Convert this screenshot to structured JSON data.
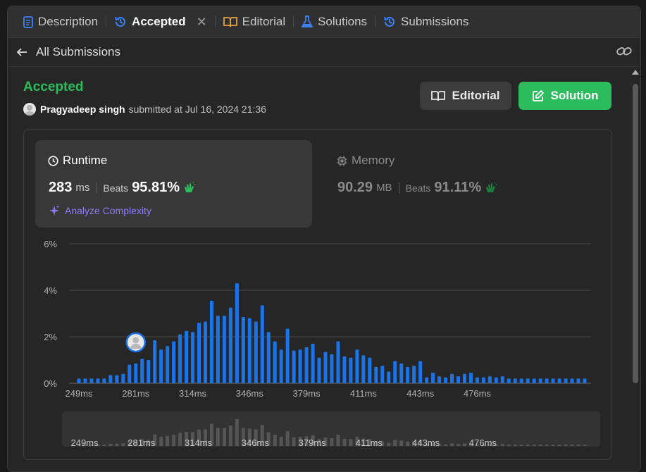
{
  "tabs": [
    {
      "label": "Description",
      "icon": "document-icon",
      "active": false
    },
    {
      "label": "Accepted",
      "icon": "history-icon",
      "active": true
    },
    {
      "label": "Editorial",
      "icon": "book-icon",
      "active": false
    },
    {
      "label": "Solutions",
      "icon": "flask-icon",
      "active": false
    },
    {
      "label": "Submissions",
      "icon": "history-icon",
      "active": false
    }
  ],
  "subheader": {
    "back_label": "All Submissions"
  },
  "submission": {
    "status": "Accepted",
    "author": "Pragyadeep singh",
    "submitted_text": "submitted at Jul 16, 2024 21:36"
  },
  "buttons": {
    "editorial": "Editorial",
    "solution": "Solution"
  },
  "runtime": {
    "label": "Runtime",
    "value": "283",
    "unit": "ms",
    "beats_label": "Beats",
    "beats_value": "95.81%",
    "analyze_label": "Analyze Complexity"
  },
  "memory": {
    "label": "Memory",
    "value": "90.29",
    "unit": "MB",
    "beats_label": "Beats",
    "beats_value": "91.11%"
  },
  "colors": {
    "accent_green": "#2cbb5d",
    "bar_blue": "#1a73e8",
    "analyze_purple": "#8d7bff",
    "mini_bar": "#555555"
  },
  "chart_data": {
    "type": "bar",
    "ylim": [
      0,
      6
    ],
    "yticks": [
      "6%",
      "4%",
      "2%",
      "0%"
    ],
    "xticks": [
      "249ms",
      "281ms",
      "314ms",
      "346ms",
      "379ms",
      "411ms",
      "443ms",
      "476ms"
    ],
    "xtick_positions": [
      0,
      9,
      18,
      27,
      36,
      45,
      54,
      63
    ],
    "highlight_index": 9,
    "values": [
      0.2,
      0.2,
      0.2,
      0.2,
      0.2,
      0.35,
      0.35,
      0.4,
      0.8,
      0.85,
      1.05,
      1.0,
      1.85,
      1.45,
      1.6,
      1.8,
      2.1,
      2.25,
      2.2,
      2.6,
      2.65,
      3.55,
      2.9,
      2.9,
      3.25,
      4.3,
      2.85,
      2.8,
      2.65,
      3.35,
      2.2,
      1.8,
      1.45,
      2.35,
      1.4,
      1.45,
      1.55,
      1.7,
      1.1,
      1.35,
      1.25,
      1.8,
      1.15,
      1.1,
      1.45,
      1.2,
      1.1,
      0.7,
      0.75,
      0.5,
      0.95,
      0.85,
      0.7,
      0.75,
      0.95,
      0.25,
      0.45,
      0.3,
      0.25,
      0.4,
      0.3,
      0.4,
      0.45,
      0.25,
      0.25,
      0.3,
      0.25,
      0.3,
      0.2,
      0.2,
      0.2,
      0.2,
      0.2,
      0.2,
      0.2,
      0.2,
      0.2,
      0.2,
      0.2,
      0.2,
      0.2
    ]
  }
}
